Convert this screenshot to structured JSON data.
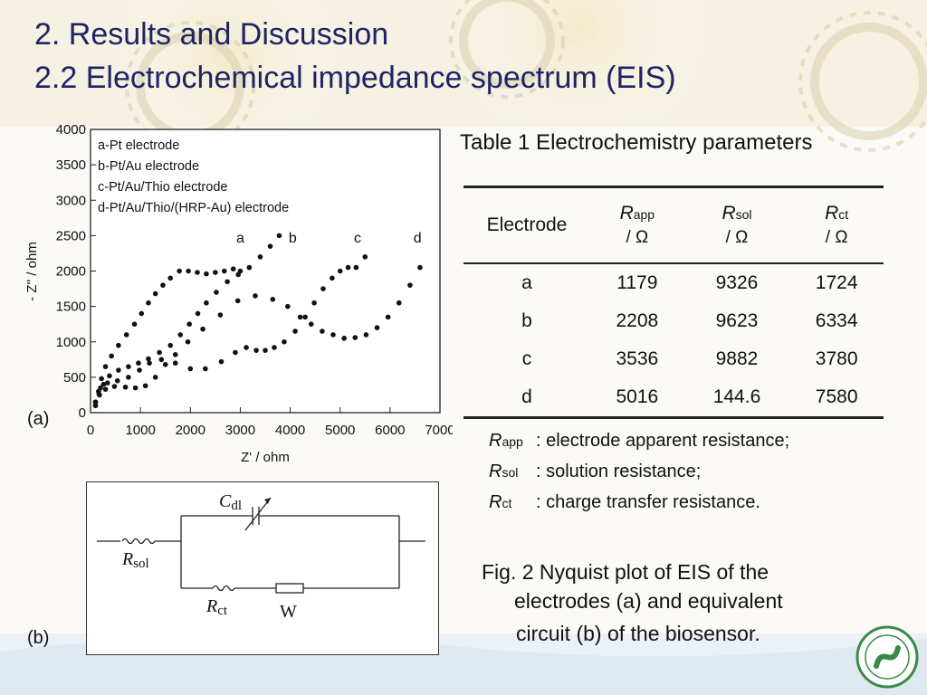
{
  "slide": {
    "title_line1": "2. Results and Discussion",
    "title_line2": "2.2 Electrochemical impedance spectrum (EIS)"
  },
  "panel_labels": {
    "a": "(a)",
    "b": "(b)"
  },
  "chart_data": {
    "type": "scatter",
    "xlabel": "Z' / ohm",
    "ylabel": "- Z'' / ohm",
    "xlim": [
      0,
      7000
    ],
    "ylim": [
      0,
      4000
    ],
    "xticks": [
      0,
      1000,
      2000,
      3000,
      4000,
      5000,
      6000,
      7000
    ],
    "yticks": [
      0,
      500,
      1000,
      1500,
      2000,
      2500,
      3000,
      3500,
      4000
    ],
    "legend_position": "top-left",
    "legend": [
      "a-Pt electrode",
      "b-Pt/Au electrode",
      "c-Pt/Au/Thio electrode",
      "d-Pt/Au/Thio/(HRP-Au) electrode"
    ],
    "grid": false,
    "series": [
      {
        "name": "a",
        "x": [
          100,
          160,
          220,
          300,
          420,
          560,
          720,
          880,
          1020,
          1160,
          1300,
          1450,
          1600,
          1780,
          1960,
          2140,
          2320,
          2500,
          2680,
          2860,
          3000
        ],
        "y": [
          100,
          300,
          480,
          650,
          800,
          950,
          1100,
          1250,
          1400,
          1550,
          1680,
          1800,
          1900,
          2000,
          2000,
          1980,
          1960,
          1980,
          2000,
          2030,
          2000
        ]
      },
      {
        "name": "b",
        "x": [
          100,
          170,
          260,
          380,
          560,
          760,
          960,
          1160,
          1380,
          1600,
          1800,
          1980,
          2150,
          2320,
          2520,
          2740,
          2960,
          3180,
          3400,
          3600,
          3780
        ],
        "y": [
          100,
          260,
          400,
          520,
          600,
          650,
          700,
          760,
          850,
          950,
          1100,
          1250,
          1400,
          1550,
          1700,
          1850,
          1950,
          2050,
          2200,
          2350,
          2500
        ]
      },
      {
        "name": "c",
        "x": [
          100,
          200,
          340,
          540,
          760,
          980,
          1180,
          1420,
          1700,
          2000,
          2300,
          2620,
          2900,
          3120,
          3320,
          3500,
          3680,
          3880,
          4100,
          4300,
          4480,
          4660,
          4840,
          5000,
          5160,
          5320,
          5500
        ],
        "y": [
          150,
          350,
          420,
          450,
          500,
          600,
          700,
          750,
          700,
          620,
          620,
          720,
          850,
          920,
          880,
          880,
          920,
          1000,
          1150,
          1350,
          1550,
          1750,
          1900,
          2000,
          2050,
          2050,
          2200
        ]
      },
      {
        "name": "d",
        "x": [
          100,
          180,
          300,
          480,
          700,
          900,
          1100,
          1300,
          1500,
          1700,
          1950,
          2250,
          2600,
          2950,
          3300,
          3650,
          3950,
          4200,
          4420,
          4640,
          4860,
          5080,
          5300,
          5520,
          5740,
          5960,
          6180,
          6400,
          6600
        ],
        "y": [
          150,
          250,
          330,
          370,
          360,
          350,
          380,
          500,
          680,
          820,
          1000,
          1180,
          1380,
          1580,
          1650,
          1600,
          1500,
          1350,
          1250,
          1150,
          1100,
          1050,
          1060,
          1100,
          1200,
          1350,
          1550,
          1800,
          2050
        ]
      }
    ],
    "curve_labels": [
      {
        "text": "a",
        "x": 3000,
        "y": 2400
      },
      {
        "text": "b",
        "x": 4050,
        "y": 2400
      },
      {
        "text": "c",
        "x": 5350,
        "y": 2400
      },
      {
        "text": "d",
        "x": 6550,
        "y": 2400
      }
    ]
  },
  "table": {
    "caption": "Table 1  Electrochemistry parameters",
    "headers": [
      {
        "label": "Electrode"
      },
      {
        "symbol": "R",
        "subscript": "app",
        "unit": "/ Ω"
      },
      {
        "symbol": "R",
        "subscript": "sol",
        "unit": "/ Ω"
      },
      {
        "symbol": "R",
        "subscript": "ct",
        "unit": "/ Ω"
      }
    ],
    "rows": [
      [
        "a",
        "1179",
        "9326",
        "1724"
      ],
      [
        "b",
        "2208",
        "9623",
        "6334"
      ],
      [
        "c",
        "3536",
        "9882",
        "3780"
      ],
      [
        "d",
        "5016",
        "144.6",
        "7580"
      ]
    ]
  },
  "notes": [
    {
      "symbol": "R",
      "subscript": "app",
      "text": ": electrode apparent resistance;"
    },
    {
      "symbol": "R",
      "subscript": "sol",
      "text": ": solution resistance;"
    },
    {
      "symbol": "R",
      "subscript": "ct",
      "text": ": charge transfer resistance."
    }
  ],
  "circuit": {
    "cdl": {
      "symbol": "C",
      "subscript": "dl"
    },
    "rsol": {
      "symbol": "R",
      "subscript": "sol"
    },
    "rct": {
      "symbol": "R",
      "subscript": "ct"
    },
    "w": "W"
  },
  "figure_caption": {
    "line1": "Fig. 2  Nyquist plot of EIS of the",
    "line2": "electrodes (a) and equivalent",
    "line3": "circuit (b) of the biosensor."
  }
}
